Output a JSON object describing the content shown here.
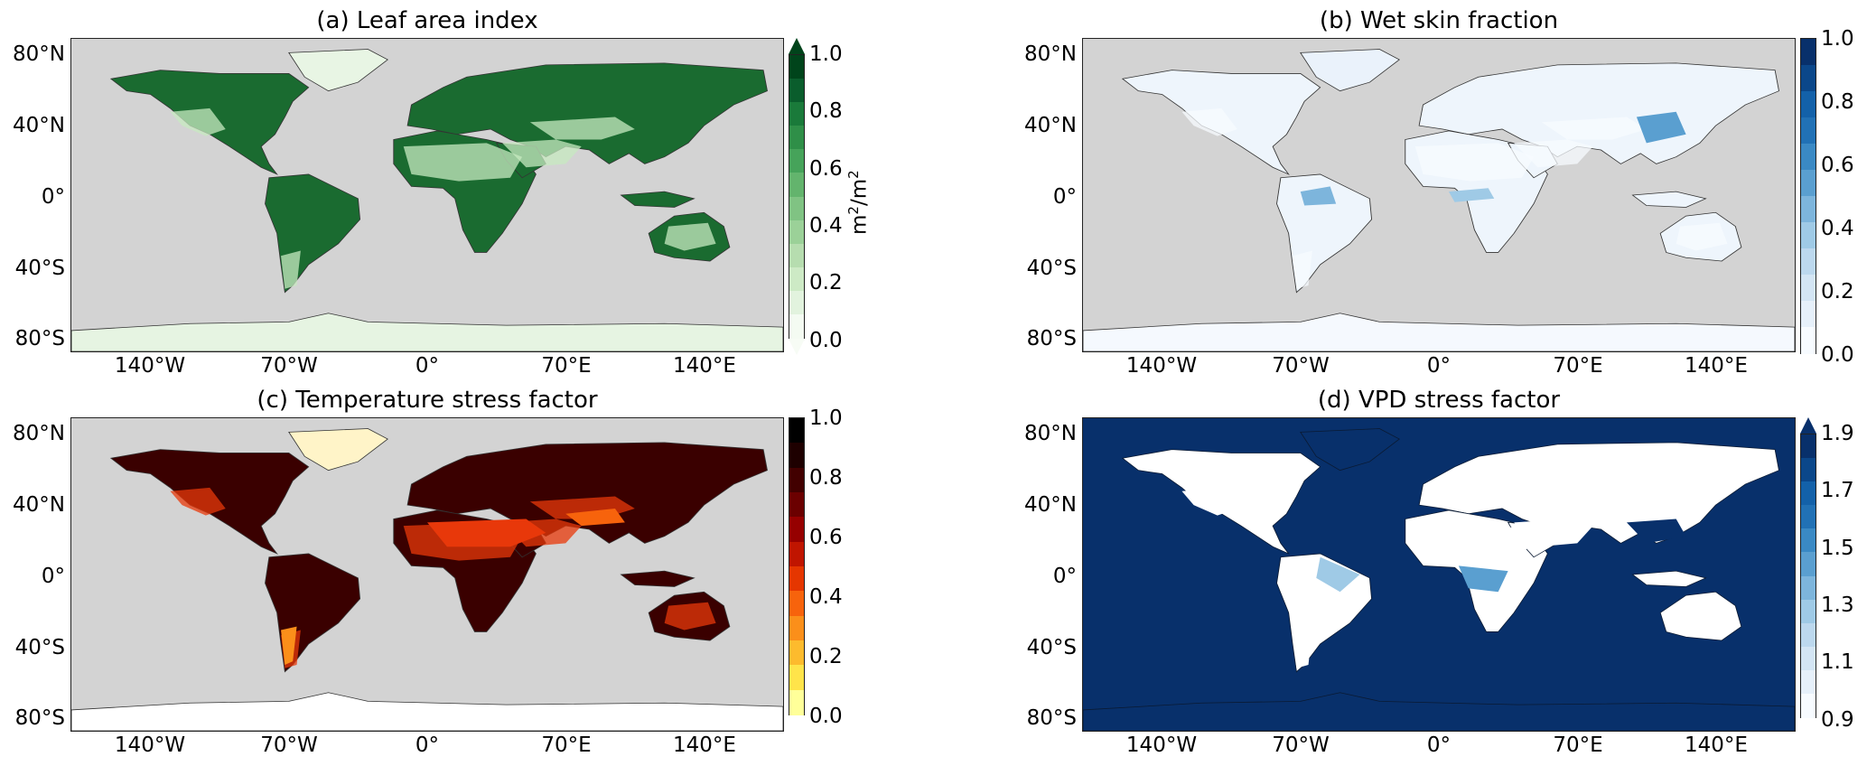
{
  "colors": {
    "ocean": "#d3d3d3",
    "coast": "#333333",
    "antarctica_a": "#e6f4e2",
    "antarctica_c": "#ffffff",
    "antarctica_d": "#08306b"
  },
  "panels": [
    {
      "id": "a",
      "title": "(a) Leaf area index",
      "land_color": "#1a6b30",
      "ocean_color": "#d3d3d3",
      "desert_color": "#c7e9c0",
      "colorbar": {
        "ticks": [
          "1.0",
          "0.8",
          "0.6",
          "0.4",
          "0.2",
          "0.0"
        ],
        "unit": "m2/m2",
        "extend_top": true,
        "extend_bottom": true,
        "top_color": "#00441b",
        "bottom_color": "#f7fcf5",
        "colors": [
          "#00441b",
          "#0a5d2c",
          "#1a7a3a",
          "#2f8f48",
          "#46a35a",
          "#63b46d",
          "#80c383",
          "#9bd198",
          "#b6ddaf",
          "#cdeac5",
          "#e2f3de",
          "#f4fbf2"
        ]
      },
      "lat_ticks": [
        "80°N",
        "40°N",
        "0°",
        "40°S",
        "80°S"
      ],
      "lon_ticks": [
        "140°W",
        "70°W",
        "0°",
        "70°E",
        "140°E"
      ]
    },
    {
      "id": "b",
      "title": "(b) Wet skin fraction",
      "land_color": "#eef5fc",
      "ocean_color": "#d3d3d3",
      "desert_color": "#f7fbff",
      "colorbar": {
        "ticks": [
          "1.0",
          "0.8",
          "0.6",
          "0.4",
          "0.2",
          "0.0"
        ],
        "unit": "",
        "extend_top": false,
        "extend_bottom": false,
        "colors": [
          "#08306b",
          "#0b478a",
          "#1361a9",
          "#2171b5",
          "#3a89c4",
          "#5a9fd0",
          "#7db5dc",
          "#9fcae6",
          "#bcd8ee",
          "#d3e5f4",
          "#e6f0fa",
          "#f7fbff"
        ]
      },
      "lat_ticks": [
        "80°N",
        "40°N",
        "0°",
        "40°S",
        "80°S"
      ],
      "lon_ticks": [
        "140°W",
        "70°W",
        "0°",
        "70°E",
        "140°E"
      ]
    },
    {
      "id": "c",
      "title": "(c) Temperature stress factor",
      "land_color": "#3a0000",
      "ocean_color": "#d3d3d3",
      "desert_color": "#e8380a",
      "colorbar": {
        "ticks": [
          "1.0",
          "0.8",
          "0.6",
          "0.4",
          "0.2",
          "0.0"
        ],
        "unit": "",
        "extend_top": false,
        "extend_bottom": true,
        "bottom_color": "#ffffff",
        "colors": [
          "#000000",
          "#1e0000",
          "#420000",
          "#6b0000",
          "#960000",
          "#c01500",
          "#e53600",
          "#f7630c",
          "#fb8f1a",
          "#fdbb2d",
          "#ffe44a",
          "#ffff99"
        ]
      },
      "lat_ticks": [
        "80°N",
        "40°N",
        "0°",
        "40°S",
        "80°S"
      ],
      "lon_ticks": [
        "140°W",
        "70°W",
        "0°",
        "70°E",
        "140°E"
      ]
    },
    {
      "id": "d",
      "title": "(d) VPD stress factor",
      "land_color": "#ffffff",
      "ocean_color": "#08306b",
      "desert_color": "#ffffff",
      "colorbar": {
        "ticks": [
          "1.9",
          "1.7",
          "1.5",
          "1.3",
          "1.1",
          "0.9"
        ],
        "unit": "",
        "extend_top": true,
        "extend_bottom": true,
        "top_color": "#08306b",
        "bottom_color": "#ffffff",
        "colors": [
          "#08306b",
          "#0b478a",
          "#1361a9",
          "#2171b5",
          "#3a89c4",
          "#5a9fd0",
          "#7db5dc",
          "#9fcae6",
          "#bcd8ee",
          "#d3e5f4",
          "#e6f0fa",
          "#f7fbff"
        ]
      },
      "lat_ticks": [
        "80°N",
        "40°N",
        "0°",
        "40°S",
        "80°S"
      ],
      "lon_ticks": [
        "140°W",
        "70°W",
        "0°",
        "70°E",
        "140°E"
      ]
    }
  ]
}
